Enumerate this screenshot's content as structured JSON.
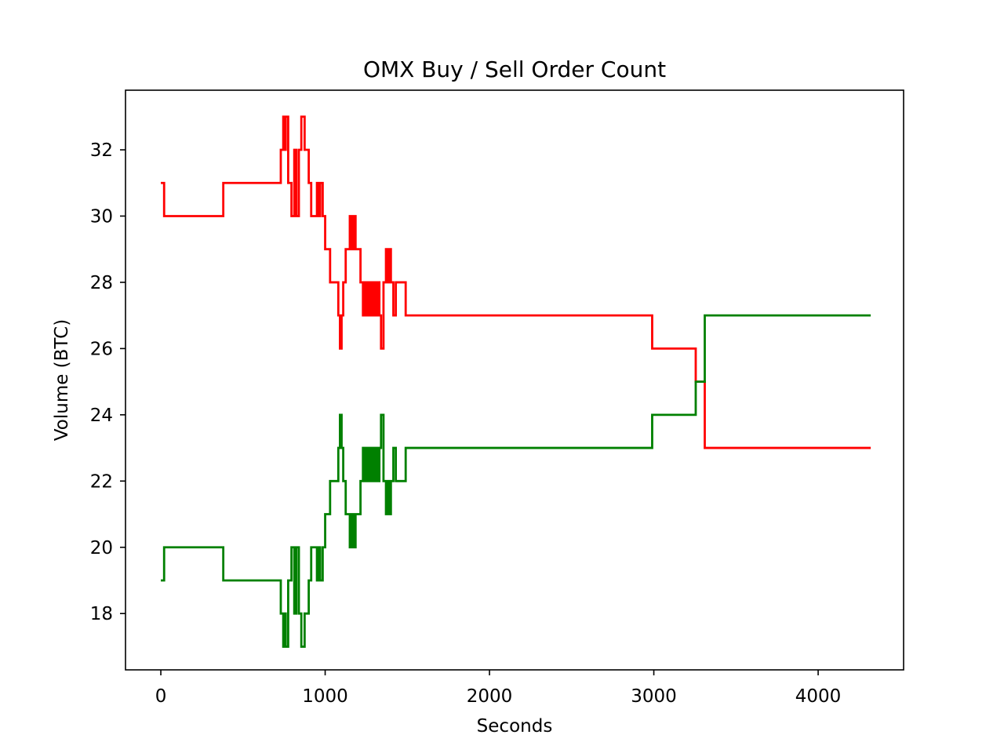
{
  "chart_data": {
    "type": "line",
    "title": "OMX Buy / Sell Order Count",
    "xlabel": "Seconds",
    "ylabel": "Volume (BTC)",
    "xlim": [
      -215,
      4520
    ],
    "ylim": [
      16.3,
      33.8
    ],
    "xticks": [
      0,
      1000,
      2000,
      3000,
      4000
    ],
    "yticks": [
      18,
      20,
      22,
      24,
      26,
      28,
      30,
      32
    ],
    "grid": false,
    "line_style": "steps-post",
    "series": [
      {
        "color": "#ff0000",
        "x": [
          0,
          20,
          380,
          730,
          745,
          752,
          760,
          775,
          795,
          812,
          825,
          840,
          855,
          875,
          900,
          915,
          950,
          960,
          970,
          985,
          1000,
          1030,
          1080,
          1090,
          1100,
          1110,
          1125,
          1150,
          1160,
          1172,
          1185,
          1215,
          1230,
          1240,
          1252,
          1262,
          1272,
          1282,
          1292,
          1300,
          1310,
          1320,
          1330,
          1340,
          1355,
          1370,
          1380,
          1390,
          1400,
          1415,
          1430,
          1490,
          2990,
          3255,
          3310,
          4320
        ],
        "values": [
          31,
          30,
          31,
          32,
          33,
          32,
          33,
          31,
          30,
          32,
          30,
          32,
          33,
          32,
          31,
          30,
          31,
          30,
          31,
          30,
          29,
          28,
          27,
          26,
          27,
          28,
          29,
          30,
          29,
          30,
          29,
          28,
          27,
          28,
          27,
          28,
          27,
          28,
          27,
          28,
          27,
          28,
          27,
          26,
          28,
          29,
          28,
          29,
          28,
          27,
          28,
          27,
          26,
          25,
          23,
          23
        ]
      },
      {
        "color": "#008000",
        "x": [
          0,
          20,
          380,
          730,
          745,
          752,
          760,
          775,
          795,
          812,
          825,
          840,
          855,
          875,
          900,
          915,
          950,
          960,
          970,
          985,
          1000,
          1030,
          1080,
          1090,
          1100,
          1110,
          1125,
          1150,
          1160,
          1172,
          1185,
          1215,
          1230,
          1240,
          1252,
          1262,
          1272,
          1282,
          1292,
          1300,
          1310,
          1320,
          1330,
          1340,
          1355,
          1370,
          1380,
          1390,
          1400,
          1415,
          1430,
          1490,
          2990,
          3255,
          3310,
          4320
        ],
        "values": [
          19,
          20,
          19,
          18,
          17,
          18,
          17,
          19,
          20,
          18,
          20,
          18,
          17,
          18,
          19,
          20,
          19,
          20,
          19,
          20,
          21,
          22,
          23,
          24,
          23,
          22,
          21,
          20,
          21,
          20,
          21,
          22,
          23,
          22,
          23,
          22,
          23,
          22,
          23,
          22,
          23,
          22,
          23,
          24,
          22,
          21,
          22,
          21,
          22,
          23,
          22,
          23,
          24,
          25,
          27,
          27
        ]
      }
    ]
  }
}
